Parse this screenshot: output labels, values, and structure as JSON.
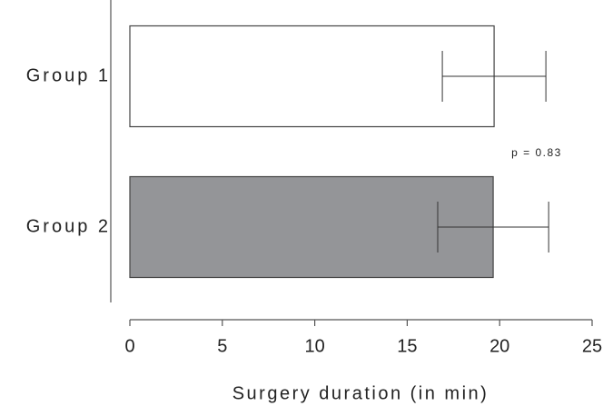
{
  "chart_data": {
    "type": "bar",
    "orientation": "horizontal",
    "categories": [
      "Group 1",
      "Group 2"
    ],
    "values": [
      19.7,
      19.65
    ],
    "errors": [
      2.8,
      3.0
    ],
    "colors": [
      "#ffffff",
      "#949598"
    ],
    "xlim": [
      0,
      25
    ],
    "xticks": [
      0,
      5,
      10,
      15,
      20,
      25
    ],
    "xlabel": "Surgery duration (in min)",
    "annotation": "p = 0.83"
  }
}
